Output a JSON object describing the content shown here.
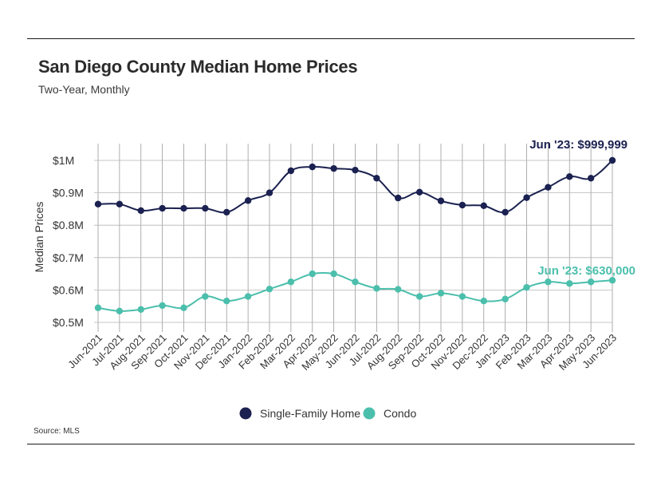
{
  "header": {
    "title": "San Diego County Median Home Prices",
    "subtitle": "Two-Year, Monthly"
  },
  "footer": {
    "source": "Source:  MLS"
  },
  "chart_data": {
    "type": "line",
    "title": "San Diego County Median Home Prices",
    "subtitle": "Two-Year, Monthly",
    "ylabel": "Median Prices",
    "xlabel": "",
    "ylim": [
      0.5,
      1.0
    ],
    "yticks": [
      {
        "value": 1.0,
        "label": "$1M"
      },
      {
        "value": 0.9,
        "label": "$0.9M"
      },
      {
        "value": 0.8,
        "label": "$0.8M"
      },
      {
        "value": 0.7,
        "label": "$0.7M"
      },
      {
        "value": 0.6,
        "label": "$0.6M"
      },
      {
        "value": 0.5,
        "label": "$0.5M"
      }
    ],
    "categories": [
      "Jun-2021",
      "Jul-2021",
      "Aug-2021",
      "Sep-2021",
      "Oct-2021",
      "Nov-2021",
      "Dec-2021",
      "Jan-2022",
      "Feb-2022",
      "Mar-2022",
      "Apr-2022",
      "May-2022",
      "Jun-2022",
      "Jul-2022",
      "Aug-2022",
      "Sep-2022",
      "Oct-2022",
      "Nov-2022",
      "Dec-2022",
      "Jan-2023",
      "Feb-2023",
      "Mar-2023",
      "Apr-2023",
      "May-2023",
      "Jun-2023"
    ],
    "series": [
      {
        "name": "Single-Family Home",
        "color": "#1b2150",
        "values": [
          0.865,
          0.865,
          0.845,
          0.852,
          0.852,
          0.852,
          0.84,
          0.876,
          0.9,
          0.968,
          0.98,
          0.975,
          0.97,
          0.945,
          0.884,
          0.902,
          0.875,
          0.862,
          0.86,
          0.84,
          0.885,
          0.917,
          0.95,
          0.945,
          0.999999
        ],
        "annotation": "Jun '23: $999,999"
      },
      {
        "name": "Condo",
        "color": "#4bbfac",
        "values": [
          0.545,
          0.535,
          0.54,
          0.552,
          0.545,
          0.58,
          0.566,
          0.58,
          0.603,
          0.625,
          0.65,
          0.65,
          0.625,
          0.605,
          0.602,
          0.58,
          0.59,
          0.58,
          0.566,
          0.572,
          0.608,
          0.625,
          0.62,
          0.625,
          0.63
        ],
        "annotation": "Jun '23: $630,000"
      }
    ],
    "legend_position": "bottom-center",
    "grid": true
  }
}
